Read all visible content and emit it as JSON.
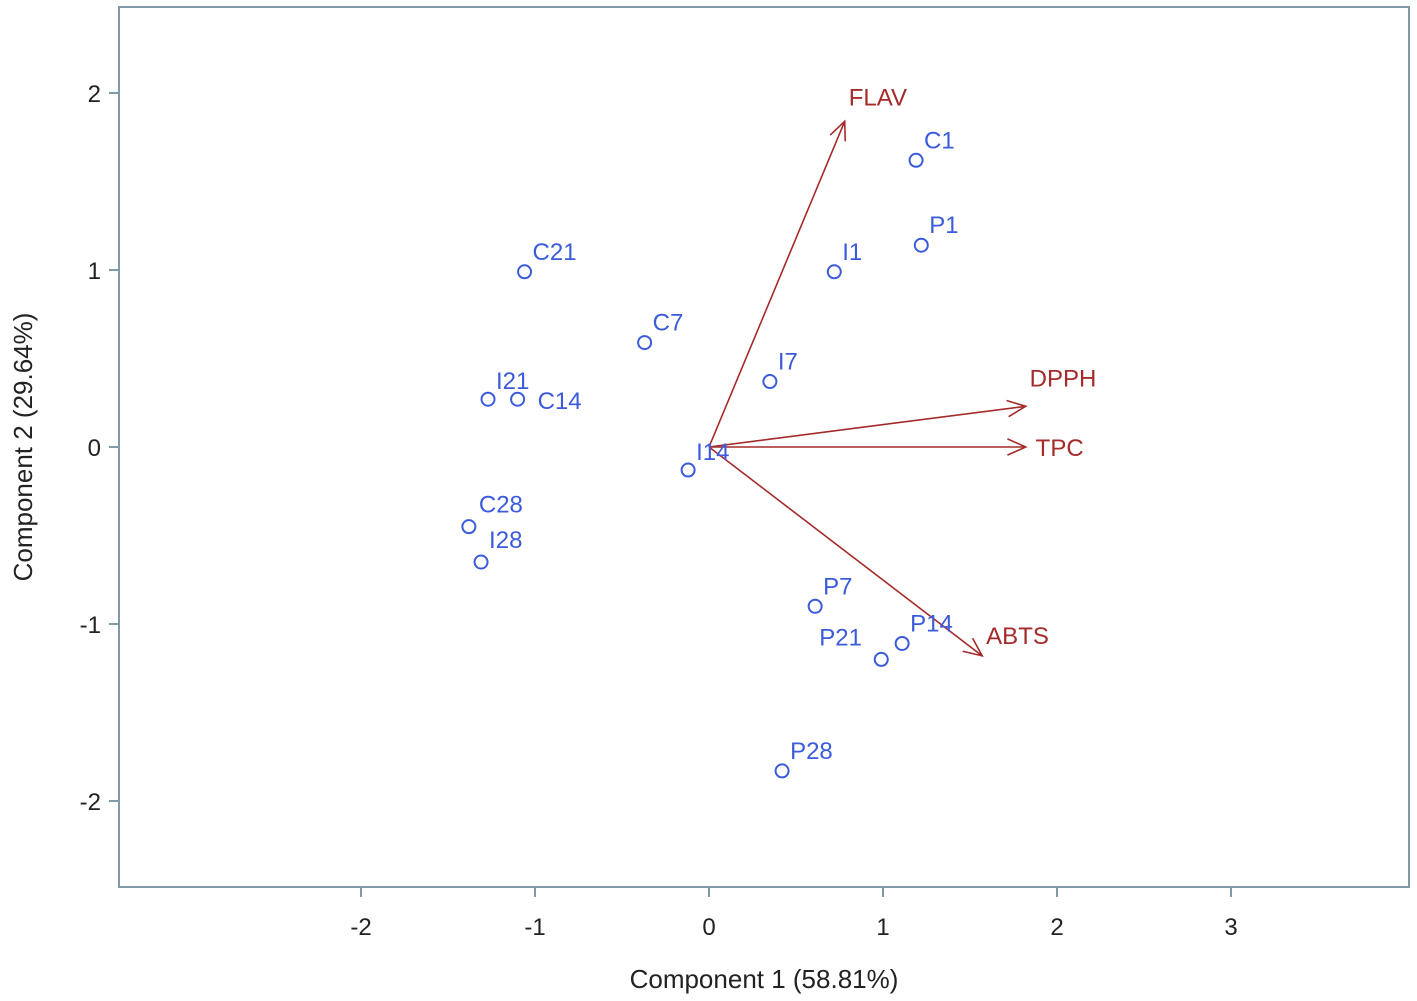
{
  "chart_data": {
    "type": "scatter",
    "subtype": "biplot",
    "xlabel": "Component 1 (58.81%)",
    "ylabel": "Component 2 (29.64%)",
    "xlim": [
      -3.4,
      4.0
    ],
    "ylim": [
      -2.5,
      2.5
    ],
    "x_ticks": [
      -2,
      -1,
      0,
      1,
      2,
      3
    ],
    "y_ticks": [
      -2,
      -1,
      0,
      1,
      2
    ],
    "grid": false,
    "colors": {
      "points": "#3b5bdb",
      "vectors": "#a52a2a",
      "frame": "#7f9aa8",
      "text": "#222222"
    },
    "points": [
      {
        "label": "C1",
        "x": 1.19,
        "y": 1.62
      },
      {
        "label": "P1",
        "x": 1.22,
        "y": 1.14
      },
      {
        "label": "I1",
        "x": 0.72,
        "y": 0.99
      },
      {
        "label": "C21",
        "x": -1.06,
        "y": 0.99
      },
      {
        "label": "C7",
        "x": -0.37,
        "y": 0.59
      },
      {
        "label": "I7",
        "x": 0.35,
        "y": 0.37
      },
      {
        "label": "I21",
        "x": -1.27,
        "y": 0.27
      },
      {
        "label": "C14",
        "x": -1.1,
        "y": 0.27
      },
      {
        "label": "I14",
        "x": -0.12,
        "y": -0.13
      },
      {
        "label": "C28",
        "x": -1.38,
        "y": -0.45
      },
      {
        "label": "I28",
        "x": -1.31,
        "y": -0.65
      },
      {
        "label": "P7",
        "x": 0.61,
        "y": -0.9
      },
      {
        "label": "P14",
        "x": 1.11,
        "y": -1.11
      },
      {
        "label": "P21",
        "x": 0.99,
        "y": -1.2
      },
      {
        "label": "P28",
        "x": 0.42,
        "y": -1.83
      }
    ],
    "vectors": [
      {
        "label": "FLAV",
        "x": 0.78,
        "y": 1.84
      },
      {
        "label": "DPPH",
        "x": 1.82,
        "y": 0.23
      },
      {
        "label": "TPC",
        "x": 1.82,
        "y": 0.0
      },
      {
        "label": "ABTS",
        "x": 1.57,
        "y": -1.18
      }
    ]
  }
}
